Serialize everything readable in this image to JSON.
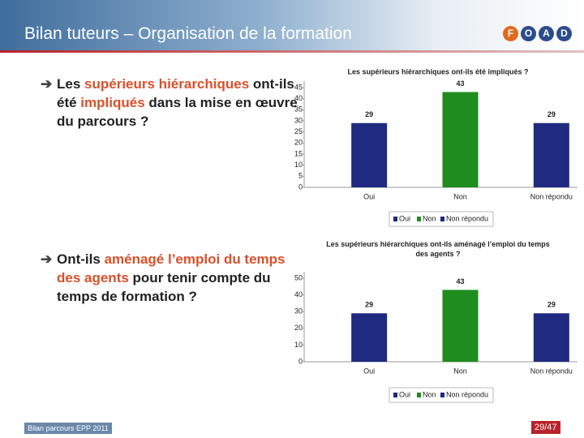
{
  "header": {
    "title": "Bilan tuteurs – Organisation de la formation",
    "logo": [
      "F",
      "O",
      "A",
      "D"
    ]
  },
  "bullets": [
    [
      {
        "text": "Les ",
        "color": "#222222"
      },
      {
        "text": "supérieurs hiérarchiques",
        "color": "#d9502a"
      },
      {
        "text": " ont-ils été ",
        "color": "#222222"
      },
      {
        "text": "impliqués",
        "color": "#d9502a"
      },
      {
        "text": " dans la mise en œuvre du parcours ?",
        "color": "#222222"
      }
    ],
    [
      {
        "text": "Ont-ils ",
        "color": "#222222"
      },
      {
        "text": "aménagé l’emploi du temps des agents",
        "color": "#d9502a"
      },
      {
        "text": " pour tenir compte du temps de formation ?",
        "color": "#222222"
      }
    ]
  ],
  "chart_data": [
    {
      "type": "bar",
      "title": "Les supérieurs hiérarchiques ont-ils été impliqués ?",
      "categories": [
        "Oui",
        "Non",
        "Non répondu"
      ],
      "values": [
        29,
        43,
        29
      ],
      "colors": [
        "#1f2a80",
        "#1e8c1e",
        "#1f2a80"
      ],
      "ylim": [
        0,
        45
      ],
      "yticks": [
        0,
        5,
        10,
        15,
        20,
        25,
        30,
        35,
        40,
        45
      ],
      "legend": true
    },
    {
      "type": "bar",
      "title": "Les supérieurs hiérarchiques ont-ils aménagé l’emploi du temps des agents ?",
      "categories": [
        "Oui",
        "Non",
        "Non répondu"
      ],
      "values": [
        29,
        43,
        29
      ],
      "colors": [
        "#1f2a80",
        "#1e8c1e",
        "#1f2a80"
      ],
      "ylim": [
        0,
        50
      ],
      "yticks": [
        0,
        10,
        20,
        30,
        40,
        50
      ],
      "legend": true
    }
  ],
  "footer": {
    "left": "Bilan parcours EPP 2011",
    "page": "29/47"
  }
}
